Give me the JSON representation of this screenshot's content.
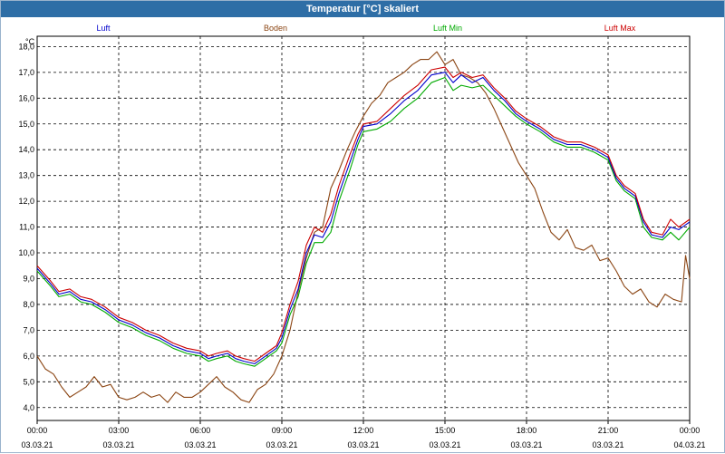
{
  "window": {
    "title": "Temperatur [°C] skaliert"
  },
  "chart_data": {
    "type": "line",
    "ylabel": "°C",
    "ylim": [
      3.5,
      18.4
    ],
    "xlim": [
      0,
      24
    ],
    "grid": true,
    "legend_placement": "top",
    "y_ticks": [
      "4,0",
      "5,0",
      "6,0",
      "7,0",
      "8,0",
      "9,0",
      "10,0",
      "11,0",
      "12,0",
      "13,0",
      "14,0",
      "15,0",
      "16,0",
      "17,0",
      "18,0"
    ],
    "y_tick_values": [
      4,
      5,
      6,
      7,
      8,
      9,
      10,
      11,
      12,
      13,
      14,
      15,
      16,
      17,
      18
    ],
    "x_ticks": [
      {
        "time": "00:00",
        "date": "03.03.21",
        "h": 0
      },
      {
        "time": "03:00",
        "date": "03.03.21",
        "h": 3
      },
      {
        "time": "06:00",
        "date": "03.03.21",
        "h": 6
      },
      {
        "time": "09:00",
        "date": "03.03.21",
        "h": 9
      },
      {
        "time": "12:00",
        "date": "03.03.21",
        "h": 12
      },
      {
        "time": "15:00",
        "date": "03.03.21",
        "h": 15
      },
      {
        "time": "18:00",
        "date": "03.03.21",
        "h": 18
      },
      {
        "time": "21:00",
        "date": "03.03.21",
        "h": 21
      },
      {
        "time": "00:00",
        "date": "04.03.21",
        "h": 24
      }
    ],
    "series": [
      {
        "name": "Luft",
        "color": "#0000cc",
        "points": [
          [
            0,
            9.4
          ],
          [
            0.5,
            8.8
          ],
          [
            0.8,
            8.4
          ],
          [
            1.2,
            8.5
          ],
          [
            1.6,
            8.2
          ],
          [
            2,
            8.1
          ],
          [
            2.5,
            7.8
          ],
          [
            3,
            7.4
          ],
          [
            3.5,
            7.2
          ],
          [
            4,
            6.9
          ],
          [
            4.5,
            6.7
          ],
          [
            5,
            6.4
          ],
          [
            5.5,
            6.2
          ],
          [
            6,
            6.1
          ],
          [
            6.3,
            5.9
          ],
          [
            6.6,
            6.0
          ],
          [
            7,
            6.1
          ],
          [
            7.3,
            5.9
          ],
          [
            7.6,
            5.8
          ],
          [
            8,
            5.7
          ],
          [
            8.4,
            6.0
          ],
          [
            8.8,
            6.3
          ],
          [
            9,
            6.7
          ],
          [
            9.3,
            7.8
          ],
          [
            9.6,
            8.6
          ],
          [
            9.9,
            10.0
          ],
          [
            10.2,
            10.7
          ],
          [
            10.5,
            10.6
          ],
          [
            10.8,
            11.2
          ],
          [
            11.1,
            12.3
          ],
          [
            11.5,
            13.5
          ],
          [
            11.8,
            14.4
          ],
          [
            12,
            14.9
          ],
          [
            12.5,
            15.0
          ],
          [
            13,
            15.4
          ],
          [
            13.5,
            15.9
          ],
          [
            14,
            16.3
          ],
          [
            14.5,
            16.9
          ],
          [
            15,
            17.0
          ],
          [
            15.3,
            16.6
          ],
          [
            15.6,
            16.9
          ],
          [
            16,
            16.6
          ],
          [
            16.4,
            16.8
          ],
          [
            16.8,
            16.3
          ],
          [
            17.2,
            15.9
          ],
          [
            17.6,
            15.4
          ],
          [
            18,
            15.1
          ],
          [
            18.5,
            14.8
          ],
          [
            19,
            14.4
          ],
          [
            19.5,
            14.2
          ],
          [
            20,
            14.2
          ],
          [
            20.5,
            14.0
          ],
          [
            21,
            13.7
          ],
          [
            21.3,
            12.9
          ],
          [
            21.6,
            12.5
          ],
          [
            22,
            12.2
          ],
          [
            22.3,
            11.2
          ],
          [
            22.6,
            10.7
          ],
          [
            23,
            10.6
          ],
          [
            23.3,
            11.0
          ],
          [
            23.6,
            10.9
          ],
          [
            24,
            11.2
          ]
        ]
      },
      {
        "name": "Boden",
        "color": "#8b4513",
        "points": [
          [
            0,
            6.0
          ],
          [
            0.3,
            5.5
          ],
          [
            0.6,
            5.3
          ],
          [
            0.9,
            4.8
          ],
          [
            1.2,
            4.4
          ],
          [
            1.5,
            4.6
          ],
          [
            1.8,
            4.8
          ],
          [
            2.1,
            5.2
          ],
          [
            2.4,
            4.8
          ],
          [
            2.7,
            4.9
          ],
          [
            3,
            4.4
          ],
          [
            3.3,
            4.3
          ],
          [
            3.6,
            4.4
          ],
          [
            3.9,
            4.6
          ],
          [
            4.2,
            4.4
          ],
          [
            4.5,
            4.5
          ],
          [
            4.8,
            4.2
          ],
          [
            5.1,
            4.6
          ],
          [
            5.4,
            4.4
          ],
          [
            5.7,
            4.4
          ],
          [
            6,
            4.6
          ],
          [
            6.3,
            4.9
          ],
          [
            6.6,
            5.2
          ],
          [
            6.9,
            4.8
          ],
          [
            7.2,
            4.6
          ],
          [
            7.5,
            4.3
          ],
          [
            7.8,
            4.2
          ],
          [
            8.1,
            4.7
          ],
          [
            8.4,
            4.9
          ],
          [
            8.7,
            5.3
          ],
          [
            9,
            6.0
          ],
          [
            9.3,
            7.0
          ],
          [
            9.6,
            8.5
          ],
          [
            9.9,
            9.8
          ],
          [
            10.2,
            10.8
          ],
          [
            10.5,
            11.0
          ],
          [
            10.8,
            12.5
          ],
          [
            11.1,
            13.2
          ],
          [
            11.4,
            14.0
          ],
          [
            11.7,
            14.7
          ],
          [
            12,
            15.3
          ],
          [
            12.3,
            15.8
          ],
          [
            12.6,
            16.1
          ],
          [
            12.9,
            16.6
          ],
          [
            13.2,
            16.8
          ],
          [
            13.5,
            17.0
          ],
          [
            13.8,
            17.3
          ],
          [
            14.1,
            17.5
          ],
          [
            14.4,
            17.5
          ],
          [
            14.7,
            17.8
          ],
          [
            15,
            17.3
          ],
          [
            15.3,
            17.5
          ],
          [
            15.6,
            16.9
          ],
          [
            15.9,
            16.8
          ],
          [
            16.2,
            16.6
          ],
          [
            16.5,
            16.2
          ],
          [
            16.8,
            15.6
          ],
          [
            17.1,
            14.9
          ],
          [
            17.4,
            14.2
          ],
          [
            17.7,
            13.5
          ],
          [
            18,
            13.0
          ],
          [
            18.3,
            12.5
          ],
          [
            18.6,
            11.6
          ],
          [
            18.9,
            10.8
          ],
          [
            19.2,
            10.5
          ],
          [
            19.5,
            10.9
          ],
          [
            19.8,
            10.2
          ],
          [
            20.1,
            10.1
          ],
          [
            20.4,
            10.3
          ],
          [
            20.7,
            9.7
          ],
          [
            21,
            9.8
          ],
          [
            21.3,
            9.3
          ],
          [
            21.6,
            8.7
          ],
          [
            21.9,
            8.4
          ],
          [
            22.2,
            8.6
          ],
          [
            22.5,
            8.1
          ],
          [
            22.8,
            7.9
          ],
          [
            23.1,
            8.4
          ],
          [
            23.4,
            8.2
          ],
          [
            23.7,
            8.1
          ],
          [
            23.85,
            9.9
          ],
          [
            24,
            9.0
          ]
        ]
      },
      {
        "name": "Luft Min",
        "color": "#00aa00",
        "points": [
          [
            0,
            9.3
          ],
          [
            0.5,
            8.7
          ],
          [
            0.8,
            8.3
          ],
          [
            1.2,
            8.4
          ],
          [
            1.6,
            8.1
          ],
          [
            2,
            8.0
          ],
          [
            2.5,
            7.7
          ],
          [
            3,
            7.3
          ],
          [
            3.5,
            7.1
          ],
          [
            4,
            6.8
          ],
          [
            4.5,
            6.6
          ],
          [
            5,
            6.3
          ],
          [
            5.5,
            6.1
          ],
          [
            6,
            6.0
          ],
          [
            6.3,
            5.8
          ],
          [
            6.6,
            5.9
          ],
          [
            7,
            6.0
          ],
          [
            7.3,
            5.8
          ],
          [
            7.6,
            5.7
          ],
          [
            8,
            5.6
          ],
          [
            8.4,
            5.9
          ],
          [
            8.8,
            6.2
          ],
          [
            9,
            6.5
          ],
          [
            9.3,
            7.6
          ],
          [
            9.6,
            8.3
          ],
          [
            9.9,
            9.6
          ],
          [
            10.2,
            10.4
          ],
          [
            10.5,
            10.4
          ],
          [
            10.8,
            10.8
          ],
          [
            11.1,
            12.0
          ],
          [
            11.5,
            13.2
          ],
          [
            11.8,
            14.2
          ],
          [
            12,
            14.7
          ],
          [
            12.5,
            14.8
          ],
          [
            13,
            15.1
          ],
          [
            13.5,
            15.6
          ],
          [
            14,
            16.0
          ],
          [
            14.5,
            16.6
          ],
          [
            15,
            16.8
          ],
          [
            15.3,
            16.3
          ],
          [
            15.6,
            16.5
          ],
          [
            16,
            16.4
          ],
          [
            16.4,
            16.5
          ],
          [
            16.8,
            16.1
          ],
          [
            17.2,
            15.7
          ],
          [
            17.6,
            15.3
          ],
          [
            18,
            15.0
          ],
          [
            18.5,
            14.7
          ],
          [
            19,
            14.3
          ],
          [
            19.5,
            14.1
          ],
          [
            20,
            14.1
          ],
          [
            20.5,
            13.9
          ],
          [
            21,
            13.6
          ],
          [
            21.3,
            12.8
          ],
          [
            21.6,
            12.4
          ],
          [
            22,
            12.1
          ],
          [
            22.3,
            11.0
          ],
          [
            22.6,
            10.6
          ],
          [
            23,
            10.5
          ],
          [
            23.3,
            10.8
          ],
          [
            23.6,
            10.5
          ],
          [
            24,
            11.0
          ]
        ]
      },
      {
        "name": "Luft Max",
        "color": "#cc0000",
        "points": [
          [
            0,
            9.5
          ],
          [
            0.5,
            8.9
          ],
          [
            0.8,
            8.5
          ],
          [
            1.2,
            8.6
          ],
          [
            1.6,
            8.3
          ],
          [
            2,
            8.2
          ],
          [
            2.5,
            7.9
          ],
          [
            3,
            7.5
          ],
          [
            3.5,
            7.3
          ],
          [
            4,
            7.0
          ],
          [
            4.5,
            6.8
          ],
          [
            5,
            6.5
          ],
          [
            5.5,
            6.3
          ],
          [
            6,
            6.2
          ],
          [
            6.3,
            6.0
          ],
          [
            6.6,
            6.1
          ],
          [
            7,
            6.2
          ],
          [
            7.3,
            6.0
          ],
          [
            7.6,
            5.9
          ],
          [
            8,
            5.8
          ],
          [
            8.4,
            6.1
          ],
          [
            8.8,
            6.4
          ],
          [
            9,
            6.9
          ],
          [
            9.3,
            8.0
          ],
          [
            9.6,
            8.9
          ],
          [
            9.9,
            10.3
          ],
          [
            10.2,
            11.0
          ],
          [
            10.5,
            10.8
          ],
          [
            10.8,
            11.5
          ],
          [
            11.1,
            12.6
          ],
          [
            11.5,
            13.8
          ],
          [
            11.8,
            14.6
          ],
          [
            12,
            15.0
          ],
          [
            12.5,
            15.1
          ],
          [
            13,
            15.6
          ],
          [
            13.5,
            16.1
          ],
          [
            14,
            16.5
          ],
          [
            14.5,
            17.1
          ],
          [
            15,
            17.2
          ],
          [
            15.3,
            16.8
          ],
          [
            15.6,
            17.0
          ],
          [
            16,
            16.8
          ],
          [
            16.4,
            16.9
          ],
          [
            16.8,
            16.4
          ],
          [
            17.2,
            16.0
          ],
          [
            17.6,
            15.5
          ],
          [
            18,
            15.2
          ],
          [
            18.5,
            14.9
          ],
          [
            19,
            14.5
          ],
          [
            19.5,
            14.3
          ],
          [
            20,
            14.3
          ],
          [
            20.5,
            14.1
          ],
          [
            21,
            13.8
          ],
          [
            21.3,
            13.0
          ],
          [
            21.6,
            12.6
          ],
          [
            22,
            12.3
          ],
          [
            22.3,
            11.3
          ],
          [
            22.6,
            10.8
          ],
          [
            23,
            10.7
          ],
          [
            23.3,
            11.3
          ],
          [
            23.6,
            11.0
          ],
          [
            24,
            11.3
          ]
        ]
      }
    ]
  }
}
